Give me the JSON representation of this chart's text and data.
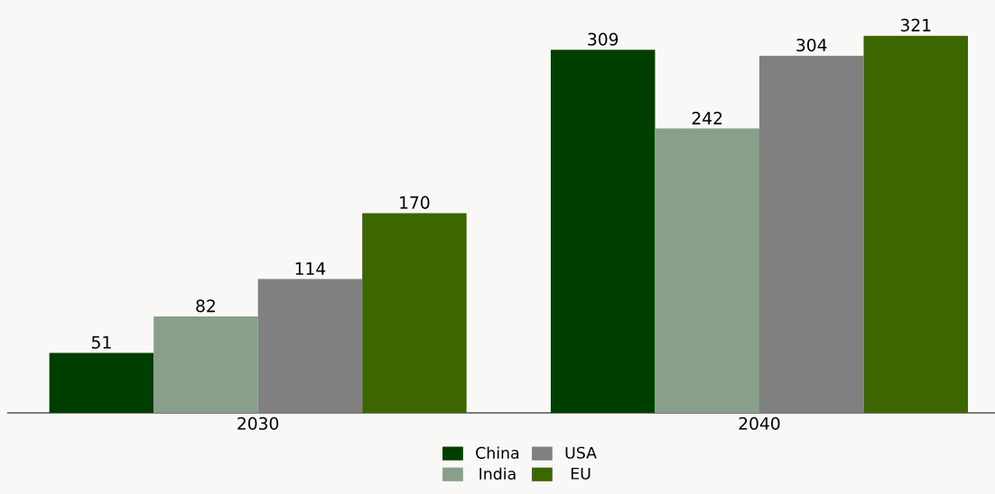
{
  "chart_data": {
    "type": "bar",
    "categories": [
      "2030",
      "2040"
    ],
    "series": [
      {
        "name": "China",
        "color": "#003f00",
        "values": [
          51,
          309
        ]
      },
      {
        "name": "India",
        "color": "#88a08a",
        "values": [
          82,
          242
        ]
      },
      {
        "name": "USA",
        "color": "#808080",
        "values": [
          114,
          304
        ]
      },
      {
        "name": "EU",
        "color": "#3b6600",
        "values": [
          170,
          321
        ]
      }
    ],
    "data_labels": true,
    "legend": "bottom",
    "grid": false
  }
}
